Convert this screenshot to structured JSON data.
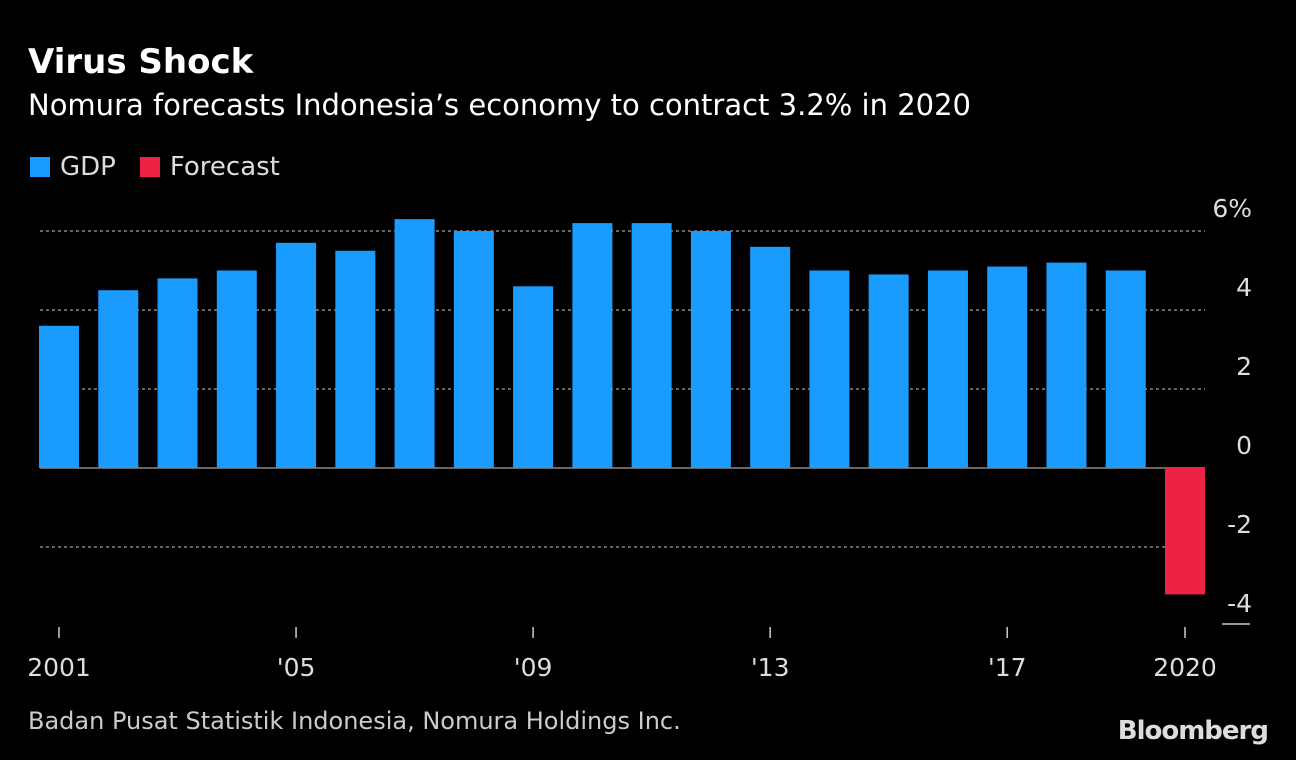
{
  "title": "Virus Shock",
  "subtitle": "Nomura forecasts Indonesia’s economy to contract 3.2% in 2020",
  "source": "Badan Pusat Statistik Indonesia, Nomura Holdings Inc.",
  "logo": "Bloomberg",
  "chart_data": {
    "type": "bar",
    "legend": [
      {
        "name": "GDP",
        "color": "#1a9cff"
      },
      {
        "name": "Forecast",
        "color": "#ee2244"
      }
    ],
    "legend_placement": "top-left",
    "categories": [
      "2001",
      "2002",
      "2003",
      "2004",
      "2005",
      "2006",
      "2007",
      "2008",
      "2009",
      "2010",
      "2011",
      "2012",
      "2013",
      "2014",
      "2015",
      "2016",
      "2017",
      "2018",
      "2019",
      "2020"
    ],
    "values": [
      3.6,
      4.5,
      4.8,
      5.0,
      5.7,
      5.5,
      6.3,
      6.0,
      4.6,
      6.2,
      6.2,
      6.0,
      5.6,
      5.0,
      4.9,
      5.0,
      5.1,
      5.2,
      5.0,
      -3.2
    ],
    "series_of_value": [
      "GDP",
      "GDP",
      "GDP",
      "GDP",
      "GDP",
      "GDP",
      "GDP",
      "GDP",
      "GDP",
      "GDP",
      "GDP",
      "GDP",
      "GDP",
      "GDP",
      "GDP",
      "GDP",
      "GDP",
      "GDP",
      "GDP",
      "Forecast"
    ],
    "x_tick_labels": [
      {
        "category": "2001",
        "label": "2001"
      },
      {
        "category": "2005",
        "label": "'05"
      },
      {
        "category": "2009",
        "label": "'09"
      },
      {
        "category": "2013",
        "label": "'13"
      },
      {
        "category": "2017",
        "label": "'17"
      },
      {
        "category": "2020",
        "label": "2020"
      }
    ],
    "y_ticks": [
      {
        "value": 6,
        "label": "6%"
      },
      {
        "value": 4,
        "label": "4"
      },
      {
        "value": 2,
        "label": "2"
      },
      {
        "value": 0,
        "label": "0"
      },
      {
        "value": -2,
        "label": "-2"
      },
      {
        "value": -4,
        "label": "-4"
      }
    ],
    "ylim": [
      -4,
      6
    ],
    "grid": true,
    "y_axis_side": "right"
  }
}
